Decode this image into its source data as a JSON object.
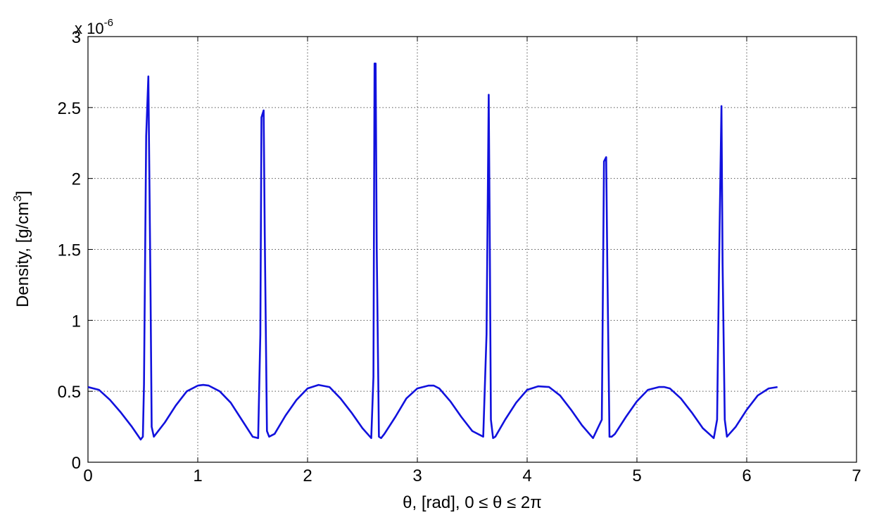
{
  "chart_data": {
    "type": "line",
    "title": "",
    "xlabel": "θ, [rad], 0 ≤ θ ≤ 2π",
    "ylabel_main": "Density, [g/cm",
    "ylabel_sup": "3",
    "ylabel_end": "]",
    "y_multiplier_base": "x 10",
    "y_multiplier_exp": "-6",
    "xlim": [
      0,
      7
    ],
    "ylim": [
      0,
      3
    ],
    "x_ticks": [
      0,
      1,
      2,
      3,
      4,
      5,
      6,
      7
    ],
    "x_tick_labels": [
      "0",
      "1",
      "2",
      "3",
      "4",
      "5",
      "6",
      "7"
    ],
    "y_ticks": [
      0,
      0.5,
      1,
      1.5,
      2,
      2.5,
      3
    ],
    "y_tick_labels": [
      "0",
      "0.5",
      "1",
      "1.5",
      "2",
      "2.5",
      "3"
    ],
    "grid": true,
    "line_color": "#1111dd",
    "series": [
      {
        "x": [
          0,
          0.1,
          0.2,
          0.3,
          0.4,
          0.48,
          0.5,
          0.51,
          0.53,
          0.55,
          0.57,
          0.58,
          0.6,
          0.7,
          0.8,
          0.9,
          1.0,
          1.05,
          1.1,
          1.2,
          1.3,
          1.4,
          1.5,
          1.55,
          1.57,
          1.58,
          1.6,
          1.61,
          1.63,
          1.65,
          1.7,
          1.8,
          1.9,
          2.0,
          2.1,
          2.2,
          2.3,
          2.4,
          2.5,
          2.58,
          2.6,
          2.61,
          2.62,
          2.63,
          2.65,
          2.67,
          2.7,
          2.8,
          2.9,
          3.0,
          3.1,
          3.15,
          3.2,
          3.3,
          3.4,
          3.5,
          3.6,
          3.63,
          3.65,
          3.66,
          3.67,
          3.69,
          3.71,
          3.8,
          3.9,
          4.0,
          4.1,
          4.2,
          4.3,
          4.4,
          4.5,
          4.6,
          4.68,
          4.7,
          4.72,
          4.73,
          4.75,
          4.77,
          4.8,
          4.9,
          5.0,
          5.1,
          5.2,
          5.25,
          5.3,
          5.4,
          5.5,
          5.6,
          5.7,
          5.73,
          5.75,
          5.77,
          5.78,
          5.8,
          5.82,
          5.9,
          6.0,
          6.1,
          6.2,
          6.28
        ],
        "y": [
          0.53,
          0.51,
          0.44,
          0.35,
          0.25,
          0.16,
          0.18,
          0.55,
          2.3,
          2.72,
          1.2,
          0.25,
          0.18,
          0.28,
          0.4,
          0.5,
          0.54,
          0.545,
          0.54,
          0.5,
          0.42,
          0.3,
          0.18,
          0.17,
          0.9,
          2.43,
          2.48,
          1.6,
          0.22,
          0.18,
          0.2,
          0.33,
          0.44,
          0.52,
          0.545,
          0.53,
          0.45,
          0.35,
          0.24,
          0.17,
          0.6,
          2.81,
          2.81,
          1.5,
          0.18,
          0.17,
          0.2,
          0.32,
          0.45,
          0.52,
          0.54,
          0.54,
          0.52,
          0.43,
          0.32,
          0.22,
          0.18,
          0.9,
          2.59,
          1.5,
          0.3,
          0.17,
          0.18,
          0.3,
          0.42,
          0.51,
          0.535,
          0.53,
          0.47,
          0.37,
          0.26,
          0.17,
          0.3,
          2.12,
          2.15,
          1.4,
          0.18,
          0.18,
          0.2,
          0.32,
          0.43,
          0.51,
          0.53,
          0.53,
          0.52,
          0.45,
          0.35,
          0.24,
          0.17,
          0.3,
          1.5,
          2.51,
          1.4,
          0.3,
          0.18,
          0.25,
          0.37,
          0.47,
          0.52,
          0.53
        ]
      }
    ]
  }
}
